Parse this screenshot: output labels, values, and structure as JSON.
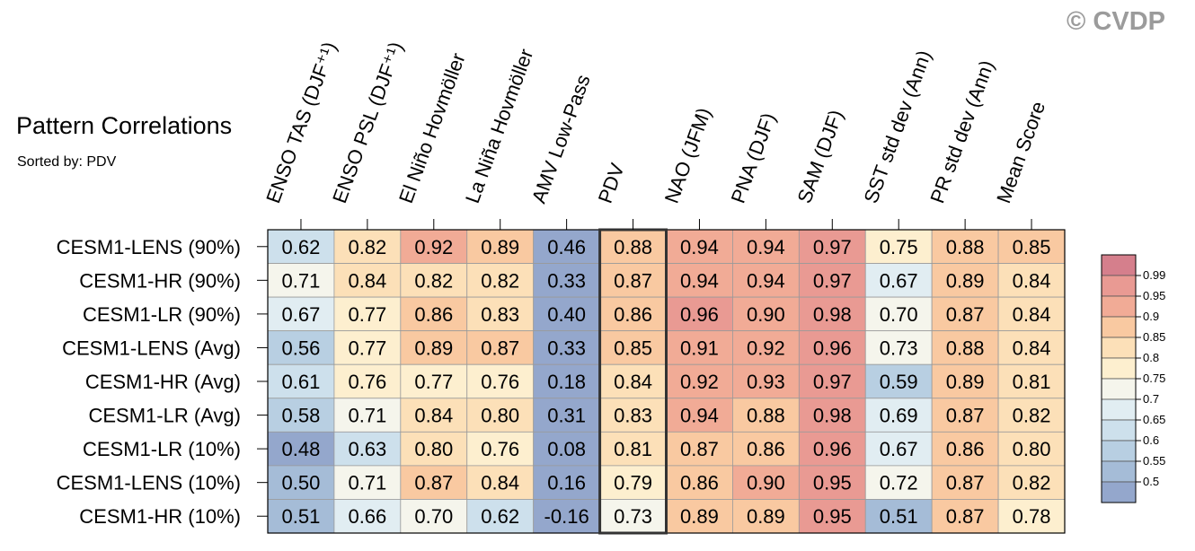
{
  "title": "Pattern Correlations",
  "subtitle": "Sorted by: PDV",
  "copyright": "© CVDP",
  "chart_data": {
    "type": "heatmap",
    "title": "Pattern Correlations",
    "subtitle": "Sorted by: PDV",
    "columns": [
      "ENSO TAS (DJF⁺¹)",
      "ENSO PSL (DJF⁺¹)",
      "El Niño Hovmöller",
      "La Niña Hovmöller",
      "AMV Low-Pass",
      "PDV",
      "NAO (JFM)",
      "PNA (DJF)",
      "SAM (DJF)",
      "SST std dev (Ann)",
      "PR std dev (Ann)",
      "Mean Score"
    ],
    "highlighted_column": "PDV",
    "rows": [
      "CESM1-LENS (90%)",
      "CESM1-HR (90%)",
      "CESM1-LR (90%)",
      "CESM1-LENS (Avg)",
      "CESM1-HR (Avg)",
      "CESM1-LR (Avg)",
      "CESM1-LR (10%)",
      "CESM1-LENS (10%)",
      "CESM1-HR (10%)"
    ],
    "values": [
      [
        "0.62",
        "0.82",
        "0.92",
        "0.89",
        "0.46",
        "0.88",
        "0.94",
        "0.94",
        "0.97",
        "0.75",
        "0.88",
        "0.85"
      ],
      [
        "0.71",
        "0.84",
        "0.82",
        "0.82",
        "0.33",
        "0.87",
        "0.94",
        "0.94",
        "0.97",
        "0.67",
        "0.89",
        "0.84"
      ],
      [
        "0.67",
        "0.77",
        "0.86",
        "0.83",
        "0.40",
        "0.86",
        "0.96",
        "0.90",
        "0.98",
        "0.70",
        "0.87",
        "0.84"
      ],
      [
        "0.56",
        "0.77",
        "0.89",
        "0.87",
        "0.33",
        "0.85",
        "0.91",
        "0.92",
        "0.96",
        "0.73",
        "0.88",
        "0.84"
      ],
      [
        "0.61",
        "0.76",
        "0.77",
        "0.76",
        "0.18",
        "0.84",
        "0.92",
        "0.93",
        "0.97",
        "0.59",
        "0.89",
        "0.81"
      ],
      [
        "0.58",
        "0.71",
        "0.84",
        "0.80",
        "0.31",
        "0.83",
        "0.94",
        "0.88",
        "0.98",
        "0.69",
        "0.87",
        "0.82"
      ],
      [
        "0.48",
        "0.63",
        "0.80",
        "0.76",
        "0.08",
        "0.81",
        "0.87",
        "0.86",
        "0.96",
        "0.67",
        "0.86",
        "0.80"
      ],
      [
        "0.50",
        "0.71",
        "0.87",
        "0.84",
        "0.16",
        "0.79",
        "0.86",
        "0.90",
        "0.95",
        "0.72",
        "0.87",
        "0.82"
      ],
      [
        "0.51",
        "0.66",
        "0.70",
        "0.62",
        "-0.16",
        "0.73",
        "0.89",
        "0.89",
        "0.95",
        "0.51",
        "0.87",
        "0.78"
      ]
    ],
    "colorbar": {
      "labels": [
        "0.99",
        "0.95",
        "0.9",
        "0.85",
        "0.8",
        "0.75",
        "0.7",
        "0.65",
        "0.6",
        "0.55",
        "0.5"
      ],
      "thresholds": [
        0.5,
        0.55,
        0.6,
        0.65,
        0.7,
        0.75,
        0.8,
        0.85,
        0.9,
        0.95,
        0.99
      ],
      "colors": [
        "#94a7cc",
        "#a5bcd7",
        "#b8cfe2",
        "#cde0ec",
        "#e1edf2",
        "#f5f5ec",
        "#fdefcf",
        "#fce0b8",
        "#f9c9a1",
        "#f1ab96",
        "#e99a93",
        "#d57f8c"
      ]
    }
  }
}
